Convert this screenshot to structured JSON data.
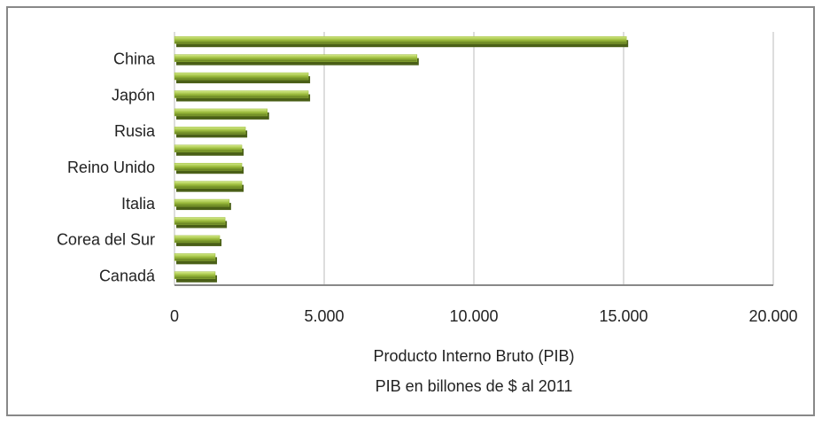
{
  "chart_data": {
    "type": "bar",
    "orientation": "horizontal",
    "categories": [
      null,
      "China",
      null,
      "Japón",
      null,
      "Rusia",
      null,
      "Reino Unido",
      null,
      "Italia",
      null,
      "Corea del Sur",
      null,
      "Canadá"
    ],
    "values": [
      15094,
      8100,
      4470,
      4470,
      3100,
      2370,
      2250,
      2250,
      2250,
      1830,
      1690,
      1510,
      1360,
      1360
    ],
    "color": "#9bbb3c",
    "x_label": "Producto Interno Bruto (PIB)",
    "x_sublabel": "PIB en billones de $ al 2011",
    "xlim": [
      0,
      20000
    ],
    "xticks": [
      0,
      {
        "value": 5000,
        "label": "5.000"
      },
      {
        "value": 10000,
        "label": "10.000"
      },
      {
        "value": 15000,
        "label": "15.000"
      },
      {
        "value": 20000,
        "label": "20.000"
      }
    ],
    "grid": true
  }
}
